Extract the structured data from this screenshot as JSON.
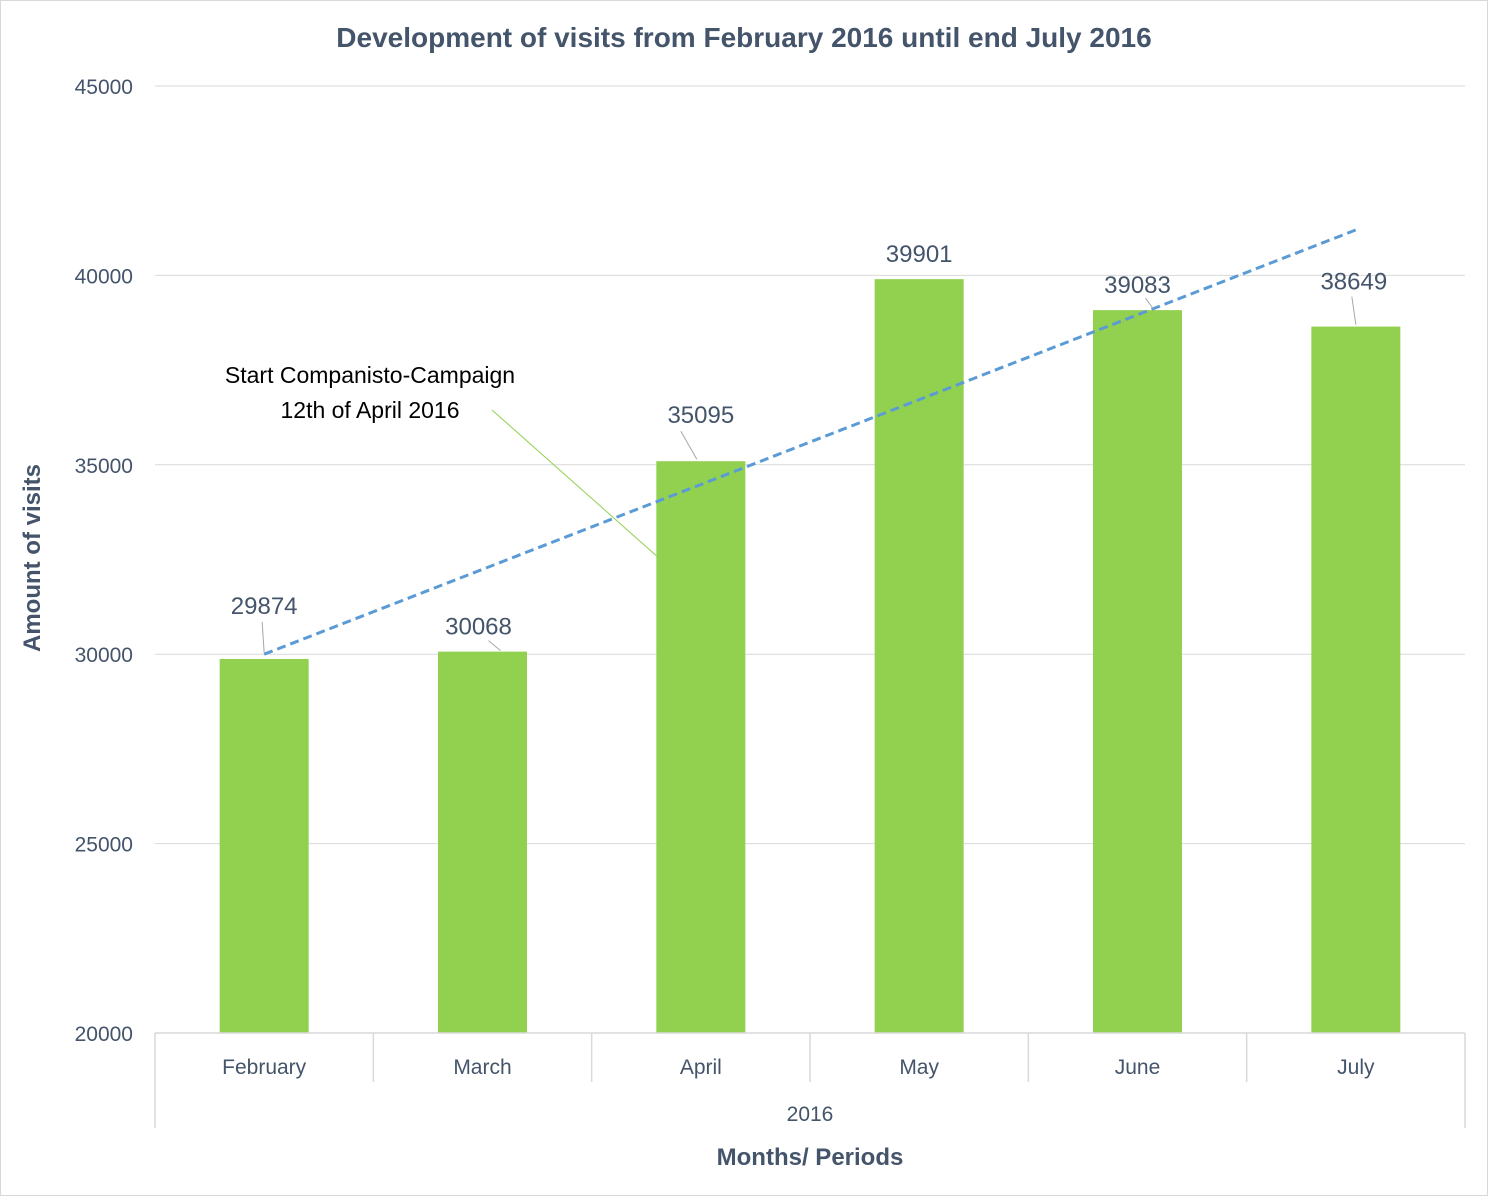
{
  "chart_data": {
    "type": "bar",
    "title": "Development of visits from February 2016 until end July 2016",
    "xlabel": "Months/ Periods",
    "ylabel": "Amount of visits",
    "group_label": "2016",
    "categories": [
      "February",
      "March",
      "April",
      "May",
      "June",
      "July"
    ],
    "series": [
      {
        "values": [
          29874,
          30068,
          35095,
          39901,
          39083,
          38649
        ]
      }
    ],
    "data_labels": [
      "29874",
      "30068",
      "35095",
      "39901",
      "39083",
      "38649"
    ],
    "ylim": [
      20000,
      45000
    ],
    "yticks": [
      20000,
      25000,
      30000,
      35000,
      40000,
      45000
    ],
    "ytick_labels": [
      "20000",
      "25000",
      "30000",
      "35000",
      "40000",
      "45000"
    ],
    "grid": true,
    "legend": "none",
    "trendline": {
      "type": "linear",
      "style": "dashed",
      "start": 30000,
      "end": 41200
    },
    "annotation": {
      "lines": [
        "Start Companisto-Campaign",
        "12th of April 2016"
      ],
      "target_category": "April",
      "target_value": 32600
    },
    "colors": {
      "bar": "#92d050",
      "trendline": "#5b9bd5",
      "text": "#44546a",
      "grid": "#d9d9d9",
      "leader": "#a6a6a6",
      "annotation_leader": "#92d050"
    }
  }
}
